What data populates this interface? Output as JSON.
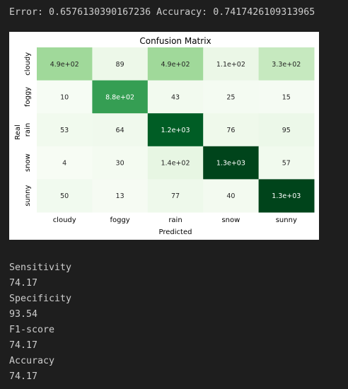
{
  "output": {
    "header": "Error: 0.6576130390167236 Accuracy: 0.7417426109313965"
  },
  "chart_data": {
    "type": "heatmap",
    "title": "Confusion Matrix",
    "xlabel": "Predicted",
    "ylabel": "Real",
    "x_categories": [
      "cloudy",
      "foggy",
      "rain",
      "snow",
      "sunny"
    ],
    "y_categories": [
      "cloudy",
      "foggy",
      "rain",
      "snow",
      "sunny"
    ],
    "values": [
      [
        490,
        89,
        490,
        110,
        330
      ],
      [
        10,
        880,
        43,
        25,
        15
      ],
      [
        53,
        64,
        1200,
        76,
        95
      ],
      [
        4,
        30,
        140,
        1300,
        57
      ],
      [
        50,
        13,
        77,
        40,
        1300
      ]
    ],
    "labels": [
      [
        "4.9e+02",
        "89",
        "4.9e+02",
        "1.1e+02",
        "3.3e+02"
      ],
      [
        "10",
        "8.8e+02",
        "43",
        "25",
        "15"
      ],
      [
        "53",
        "64",
        "1.2e+03",
        "76",
        "95"
      ],
      [
        "4",
        "30",
        "1.4e+02",
        "1.3e+03",
        "57"
      ],
      [
        "50",
        "13",
        "77",
        "40",
        "1.3e+03"
      ]
    ],
    "colormap": "Greens",
    "color_low": "#f7fcf5",
    "color_high": "#00441b",
    "vmin": 0,
    "vmax": 1300
  },
  "metrics": [
    {
      "label": "Sensitivity",
      "value": "74.17"
    },
    {
      "label": "Specificity",
      "value": "93.54"
    },
    {
      "label": "F1-score",
      "value": "74.17"
    },
    {
      "label": "Accuracy",
      "value": "74.17"
    }
  ]
}
